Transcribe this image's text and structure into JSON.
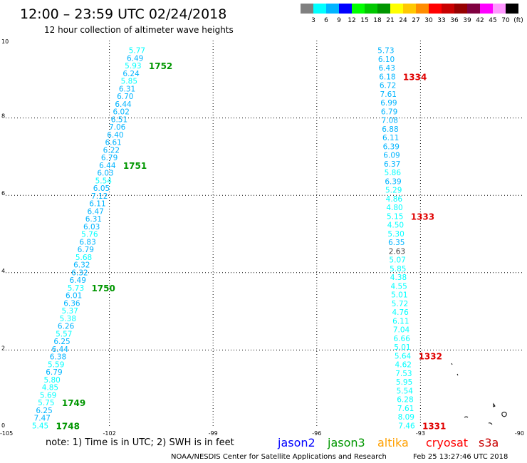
{
  "header": {
    "title": "12:00 – 23:59 UTC 02/24/2018",
    "subtitle": "12 hour collection of altimeter wave heights"
  },
  "colorbar": {
    "colors": [
      "#808080",
      "#00ffff",
      "#00b4ff",
      "#0000ff",
      "#00ff00",
      "#00c800",
      "#009600",
      "#ffff00",
      "#ffc800",
      "#ff8c00",
      "#ff0000",
      "#c80000",
      "#960000",
      "#800040",
      "#ff00ff",
      "#ff96ff",
      "#000000"
    ],
    "labels": [
      "3",
      "6",
      "9",
      "12",
      "15",
      "18",
      "21",
      "24",
      "27",
      "30",
      "33",
      "36",
      "39",
      "42",
      "45",
      "70",
      "(ft)"
    ]
  },
  "footer": {
    "note_prefix": "note:  1) Time is in UTC;  2) SWH is in feet",
    "missions": [
      {
        "label": "jason2",
        "color": "#0000ff"
      },
      {
        "label": "jason3",
        "color": "#009600"
      },
      {
        "label": "altika",
        "color": "#ffa000"
      },
      {
        "label": "cryosat",
        "color": "#ff0000"
      },
      {
        "label": "s3a",
        "color": "#c80000"
      }
    ],
    "credit": "NOAA/NESDIS Center for Satellite Applications and Research",
    "timestamp": "Feb 25 13:27:46 UTC 2018"
  },
  "chart_data": {
    "type": "scatter",
    "xlim": [
      -105,
      -90
    ],
    "ylim": [
      0,
      10
    ],
    "x_ticks": [
      {
        "v": -105,
        "label": "-105"
      },
      {
        "v": -102,
        "label": "-102"
      },
      {
        "v": -99,
        "label": "-99"
      },
      {
        "v": -96,
        "label": "-96"
      },
      {
        "v": -93,
        "label": "-93"
      },
      {
        "v": -90,
        "label": "-90"
      }
    ],
    "y_ticks": [
      {
        "v": 0,
        "label": "0"
      },
      {
        "v": 2,
        "label": "2"
      },
      {
        "v": 4,
        "label": "4"
      },
      {
        "v": 6,
        "label": "6"
      },
      {
        "v": 8,
        "label": "8"
      },
      {
        "v": 10,
        "label": "10"
      }
    ],
    "grid": "dotted",
    "tracks": [
      {
        "name": "jason3",
        "x_start": -104.0,
        "x_end": -101.2,
        "y_start": 0.05,
        "y_end": 9.75,
        "values": [
          "5.45",
          "7.47",
          "6.25",
          "5.75",
          "5.69",
          "4.85",
          "5.80",
          "6.79",
          "5.59",
          "6.38",
          "6.44",
          "6.25",
          "5.57",
          "6.26",
          "5.38",
          "5.37",
          "6.36",
          "6.01",
          "5.73",
          "6.49",
          "6.32",
          "6.32",
          "5.68",
          "6.79",
          "6.83",
          "5.76",
          "6.03",
          "6.31",
          "6.47",
          "6.11",
          "7.12",
          "6.05",
          "5.54",
          "6.03",
          "6.44",
          "6.79",
          "6.22",
          "6.61",
          "6.40",
          "7.06",
          "6.51",
          "6.02",
          "6.44",
          "6.70",
          "6.31",
          "5.85",
          "6.24",
          "5.93",
          "6.49",
          "5.77"
        ],
        "colors": [
          "#00ffff",
          "#00b4ff",
          "#00b4ff",
          "#00ffff",
          "#00ffff",
          "#00ffff",
          "#00ffff",
          "#00b4ff",
          "#00ffff",
          "#00b4ff",
          "#00b4ff",
          "#00b4ff",
          "#00ffff",
          "#00b4ff",
          "#00ffff",
          "#00ffff",
          "#00b4ff",
          "#00b4ff",
          "#00ffff",
          "#00b4ff",
          "#00b4ff",
          "#00b4ff",
          "#00ffff",
          "#00b4ff",
          "#00b4ff",
          "#00ffff",
          "#00b4ff",
          "#00b4ff",
          "#00b4ff",
          "#00b4ff",
          "#00b4ff",
          "#00b4ff",
          "#00ffff",
          "#00b4ff",
          "#00b4ff",
          "#00b4ff",
          "#00b4ff",
          "#00b4ff",
          "#00b4ff",
          "#00b4ff",
          "#00b4ff",
          "#00b4ff",
          "#00b4ff",
          "#00b4ff",
          "#00b4ff",
          "#00ffff",
          "#00b4ff",
          "#00ffff",
          "#00b4ff",
          "#00ffff"
        ],
        "times": [
          {
            "label": "1748",
            "index": 0,
            "color": "#009600"
          },
          {
            "label": "1749",
            "index": 3,
            "color": "#009600"
          },
          {
            "label": "1750",
            "index": 18,
            "color": "#009600"
          },
          {
            "label": "1751",
            "index": 34,
            "color": "#009600"
          },
          {
            "label": "1752",
            "index": 47,
            "color": "#009600"
          }
        ]
      },
      {
        "name": "cryosat",
        "x_start": -93.4,
        "x_end": -94.0,
        "y_start": 0.05,
        "y_end": 9.75,
        "values": [
          "7.46",
          "8.09",
          "7.61",
          "6.28",
          "5.54",
          "5.95",
          "7.53",
          "4.62",
          "5.64",
          "5.01",
          "6.66",
          "7.04",
          "6.11",
          "4.76",
          "5.72",
          "5.01",
          "4.55",
          "4.38",
          "5.85",
          "5.07",
          "2.63",
          "6.35",
          "5.30",
          "4.50",
          "5.15",
          "4.80",
          "4.86",
          "5.29",
          "6.39",
          "5.86",
          "6.37",
          "6.09",
          "6.39",
          "6.11",
          "6.88",
          "7.08",
          "6.79",
          "6.99",
          "7.61",
          "6.72",
          "6.18",
          "6.43",
          "6.10",
          "5.73"
        ],
        "colors": [
          "#00ffff",
          "#00ffff",
          "#00ffff",
          "#00ffff",
          "#00ffff",
          "#00ffff",
          "#00ffff",
          "#00ffff",
          "#00ffff",
          "#00ffff",
          "#00ffff",
          "#00ffff",
          "#00ffff",
          "#00ffff",
          "#00ffff",
          "#00ffff",
          "#00ffff",
          "#00ffff",
          "#00ffff",
          "#00ffff",
          "#404040",
          "#00b4ff",
          "#00ffff",
          "#00ffff",
          "#00ffff",
          "#00ffff",
          "#00ffff",
          "#00ffff",
          "#00b4ff",
          "#00ffff",
          "#00b4ff",
          "#00b4ff",
          "#00b4ff",
          "#00b4ff",
          "#00b4ff",
          "#00b4ff",
          "#00b4ff",
          "#00b4ff",
          "#00b4ff",
          "#00b4ff",
          "#00b4ff",
          "#00b4ff",
          "#00b4ff",
          "#00b4ff"
        ],
        "times": [
          {
            "label": "1331",
            "index": 0,
            "color": "#e00000"
          },
          {
            "label": "1332",
            "index": 8,
            "color": "#e00000"
          },
          {
            "label": "1333",
            "index": 24,
            "color": "#e00000"
          },
          {
            "label": "1334",
            "index": 40,
            "color": "#e00000"
          }
        ]
      }
    ]
  }
}
